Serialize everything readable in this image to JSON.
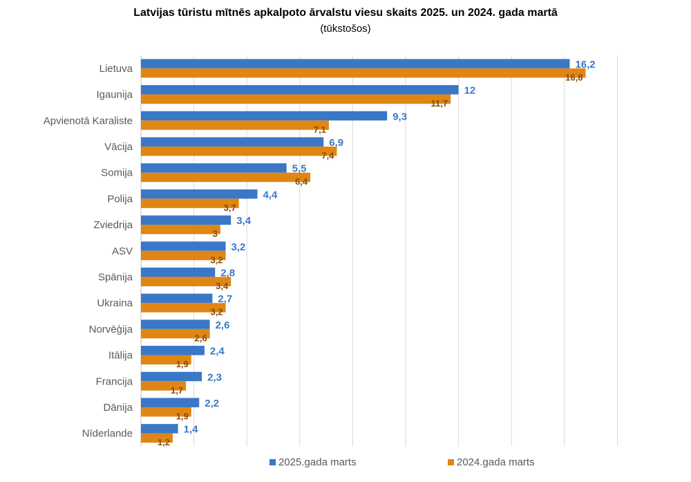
{
  "chart_data": {
    "type": "bar",
    "orientation": "horizontal",
    "title": "Latvijas tūristu mītnēs apkalpoto ārvalstu viesu skaits 2025. un 2024. gada martā",
    "subtitle": "(tūkstošos)",
    "categories": [
      "Lietuva",
      "Igaunija",
      "Apvienotā Karaliste",
      "Vācija",
      "Somija",
      "Polija",
      "Zviedrija",
      "ASV",
      "Spānija",
      "Ukraina",
      "Norvēģija",
      "Itālija",
      "Francija",
      "Dānija",
      "Nīderlande"
    ],
    "series": [
      {
        "name": "2025.gada marts",
        "color": "#3a78c7",
        "values": [
          16.2,
          12,
          9.3,
          6.9,
          5.5,
          4.4,
          3.4,
          3.2,
          2.8,
          2.7,
          2.6,
          2.4,
          2.3,
          2.2,
          1.4
        ],
        "labels": [
          "16,2",
          "12",
          "9,3",
          "6,9",
          "5,5",
          "4,4",
          "3,4",
          "3,2",
          "2,8",
          "2,7",
          "2,6",
          "2,4",
          "2,3",
          "2,2",
          "1,4"
        ]
      },
      {
        "name": "2024.gada marts",
        "color": "#df8614",
        "values": [
          16.8,
          11.7,
          7.1,
          7.4,
          6.4,
          3.7,
          3,
          3.2,
          3.4,
          3.2,
          2.6,
          1.9,
          1.7,
          1.9,
          1.2
        ],
        "labels": [
          "16,8",
          "11,7",
          "7,1",
          "7,4",
          "6,4",
          "3,7",
          "3",
          "3,2",
          "3,4",
          "3,2",
          "2,6",
          "1,9",
          "1,7",
          "1,9",
          "1,2"
        ]
      }
    ],
    "xlim": [
      0,
      18
    ],
    "gridlines": "vertical",
    "legend_position": "bottom"
  }
}
